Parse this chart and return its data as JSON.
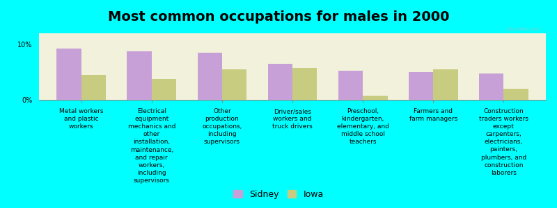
{
  "title": "Most common occupations for males in 2000",
  "background_color": "#00FFFF",
  "plot_bg_color": "#F2F2DC",
  "categories": [
    "Metal workers\nand plastic\nworkers",
    "Electrical\nequipment\nmechanics and\nother\ninstallation,\nmaintenance,\nand repair\nworkers,\nincluding\nsupervisors",
    "Other\nproduction\noccupations,\nincluding\nsupervisors",
    "Driver/sales\nworkers and\ntruck drivers",
    "Preschool,\nkindergarten,\nelementary, and\nmiddle school\nteachers",
    "Farmers and\nfarm managers",
    "Construction\ntraders workers\nexcept\ncarpenters,\nelectricians,\npainters,\nplumbers, and\nconstruction\nlaborers"
  ],
  "sidney_values": [
    9.2,
    8.8,
    8.5,
    6.5,
    5.2,
    5.0,
    4.8
  ],
  "iowa_values": [
    4.5,
    3.8,
    5.5,
    5.8,
    0.8,
    5.5,
    2.0
  ],
  "sidney_color": "#C8A0D8",
  "iowa_color": "#C8CC80",
  "ylim": [
    0,
    12
  ],
  "yticks": [
    0,
    10
  ],
  "ytick_labels": [
    "0%",
    "10%"
  ],
  "legend_labels": [
    "Sidney",
    "Iowa"
  ],
  "bar_width": 0.35,
  "title_fontsize": 14,
  "tick_fontsize": 7,
  "label_fontsize": 6.5
}
